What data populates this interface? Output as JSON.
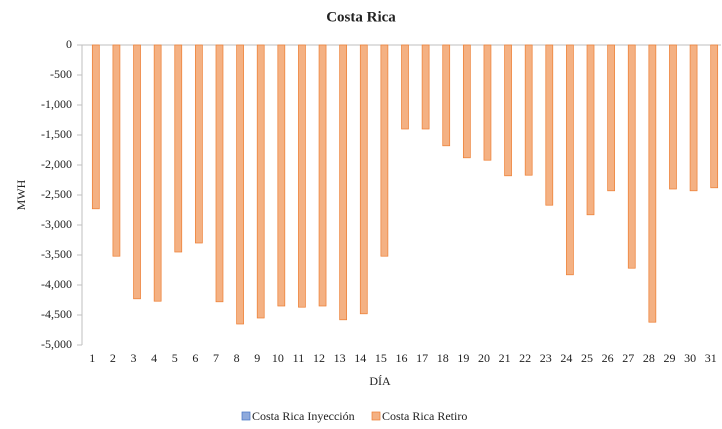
{
  "chart_data": {
    "type": "bar",
    "title": "Costa  Rica",
    "x_label": "DÍA",
    "y_label": "MWH",
    "categories": [
      "1",
      "2",
      "3",
      "4",
      "5",
      "6",
      "7",
      "8",
      "9",
      "10",
      "11",
      "12",
      "13",
      "14",
      "15",
      "16",
      "17",
      "18",
      "19",
      "20",
      "21",
      "22",
      "23",
      "24",
      "25",
      "26",
      "27",
      "28",
      "29",
      "30",
      "31"
    ],
    "series": [
      {
        "name": "Costa Rica Inyección",
        "color": "#8faadc",
        "values": [
          0,
          0,
          0,
          0,
          0,
          0,
          0,
          0,
          0,
          0,
          0,
          0,
          0,
          0,
          0,
          0,
          0,
          0,
          0,
          0,
          0,
          0,
          0,
          0,
          0,
          0,
          0,
          0,
          0,
          0,
          0
        ]
      },
      {
        "name": "Costa Rica Retiro",
        "color": "#f4b183",
        "values": [
          -2730,
          -3520,
          -4230,
          -4270,
          -3450,
          -3300,
          -4280,
          -4650,
          -4550,
          -4350,
          -4370,
          -4350,
          -4580,
          -4480,
          -3520,
          -1400,
          -1400,
          -1680,
          -1880,
          -1920,
          -2180,
          -2170,
          -2670,
          -3830,
          -2830,
          -2430,
          -3720,
          -4620,
          -2400,
          -2430,
          -2380
        ]
      }
    ],
    "ylim": [
      -5000,
      0
    ],
    "yticks": [
      0,
      -500,
      {
        "value": -1000,
        "label": "-1,000"
      },
      {
        "value": -1500,
        "label": "-1,500"
      },
      {
        "value": -2000,
        "label": "-2,000"
      },
      {
        "value": -2500,
        "label": "-2,500"
      },
      {
        "value": -3000,
        "label": "-3,000"
      },
      {
        "value": -3500,
        "label": "-3,500"
      },
      {
        "value": -4000,
        "label": "-4,000"
      },
      {
        "value": -4500,
        "label": "-4,500"
      },
      {
        "value": -5000,
        "label": "-5,000"
      }
    ],
    "legend": "bottom"
  }
}
